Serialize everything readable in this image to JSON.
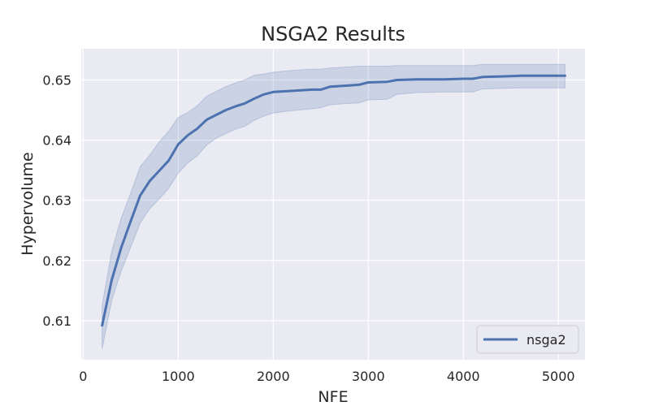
{
  "chart_data": {
    "type": "line",
    "title": "NSGA2 Results",
    "xlabel": "NFE",
    "ylabel": "Hypervolume",
    "xlim": [
      -20,
      5280
    ],
    "ylim": [
      0.6035,
      0.6552
    ],
    "x_ticks": [
      0,
      1000,
      2000,
      3000,
      4000,
      5000
    ],
    "y_ticks": [
      0.61,
      0.62,
      0.63,
      0.64,
      0.65
    ],
    "x_tick_labels": [
      "0",
      "1000",
      "2000",
      "3000",
      "4000",
      "5000"
    ],
    "y_tick_labels": [
      "0.61",
      "0.62",
      "0.63",
      "0.64",
      "0.65"
    ],
    "grid": true,
    "legend_position": "lower-right",
    "colors": {
      "line": "#4c72b0",
      "band": "#4c72b0",
      "plot_bg": "#eaeaf2",
      "grid": "#ffffff"
    },
    "series": [
      {
        "name": "nsga2",
        "x": [
          200,
          300,
          400,
          500,
          600,
          700,
          800,
          900,
          1000,
          1100,
          1200,
          1300,
          1400,
          1500,
          1600,
          1700,
          1800,
          1900,
          2000,
          2200,
          2400,
          2500,
          2600,
          2800,
          2900,
          3000,
          3200,
          3300,
          3500,
          3800,
          4000,
          4100,
          4200,
          4400,
          4600,
          4800,
          5000,
          5070
        ],
        "y": [
          0.6092,
          0.6167,
          0.6221,
          0.6265,
          0.6308,
          0.6332,
          0.6349,
          0.6366,
          0.6393,
          0.6408,
          0.6419,
          0.6434,
          0.6442,
          0.645,
          0.6456,
          0.6461,
          0.6469,
          0.6476,
          0.648,
          0.6482,
          0.6484,
          0.6484,
          0.6489,
          0.6491,
          0.6492,
          0.6496,
          0.6497,
          0.65,
          0.6501,
          0.6501,
          0.6502,
          0.6502,
          0.6505,
          0.6506,
          0.6507,
          0.6507,
          0.6507,
          0.6507
        ],
        "ci_upper": [
          0.6125,
          0.6215,
          0.627,
          0.6312,
          0.6356,
          0.6375,
          0.6397,
          0.6415,
          0.6438,
          0.6446,
          0.6457,
          0.6473,
          0.6481,
          0.6489,
          0.6495,
          0.65,
          0.6508,
          0.651,
          0.6513,
          0.6516,
          0.6518,
          0.6518,
          0.652,
          0.6522,
          0.6523,
          0.6523,
          0.6523,
          0.6524,
          0.6524,
          0.6524,
          0.6524,
          0.6524,
          0.6526,
          0.6526,
          0.6526,
          0.6526,
          0.6526,
          0.6526
        ],
        "ci_lower": [
          0.6053,
          0.6133,
          0.6182,
          0.6222,
          0.6262,
          0.6286,
          0.6302,
          0.632,
          0.6345,
          0.6362,
          0.6374,
          0.6392,
          0.6403,
          0.6411,
          0.6418,
          0.6423,
          0.6433,
          0.644,
          0.6445,
          0.6449,
          0.6452,
          0.6454,
          0.6459,
          0.6461,
          0.6462,
          0.6467,
          0.6468,
          0.6476,
          0.6479,
          0.648,
          0.648,
          0.648,
          0.6485,
          0.6486,
          0.6487,
          0.6487,
          0.6487,
          0.6487
        ]
      }
    ]
  }
}
